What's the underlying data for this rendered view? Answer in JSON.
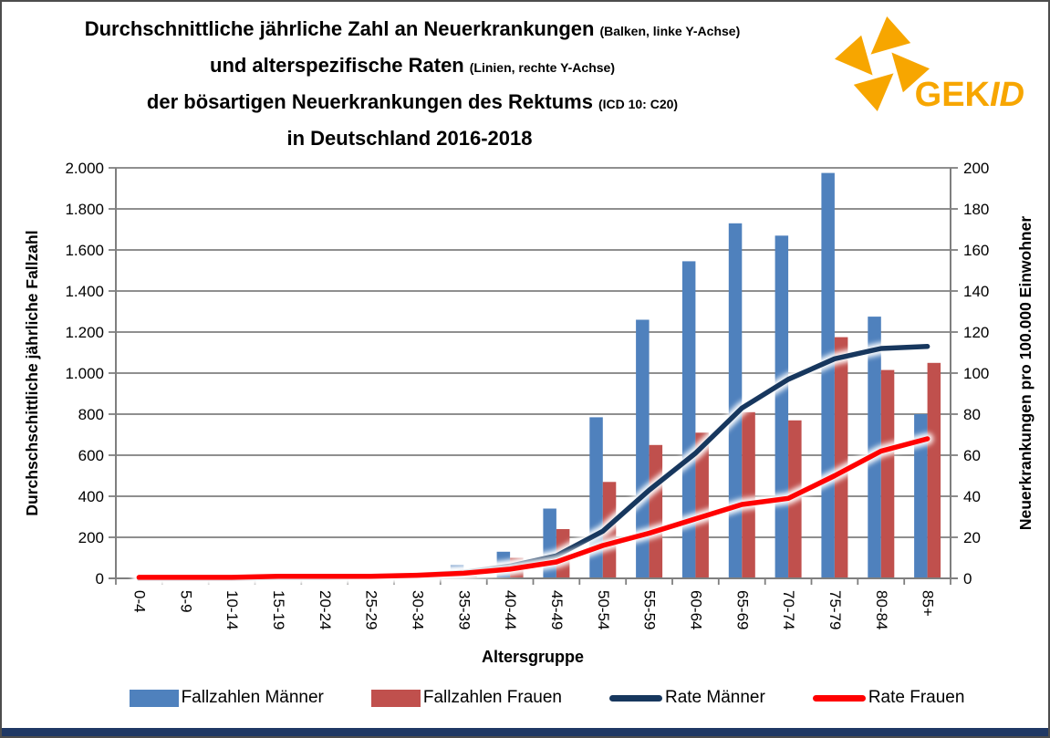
{
  "header": {
    "title_lines": [
      {
        "main": "Durchschnittliche jährliche Zahl an Neuerkrankungen",
        "note": "(Balken, linke Y-Achse)"
      },
      {
        "main": "und alterspezifische Raten",
        "note": "(Linien, rechte Y-Achse)"
      },
      {
        "main": "der bösartigen Neuerkrankungen des Rektums",
        "note": "(ICD 10: C20)"
      },
      {
        "main": "in Deutschland 2016-2018",
        "note": ""
      }
    ],
    "logo": {
      "text_bold": "GEK",
      "text_italic": "ID",
      "color": "#F7A600"
    }
  },
  "chart_data": {
    "type": "bar",
    "subtype": "grouped bars with two overlay lines",
    "categories": [
      "0-4",
      "5-9",
      "10-14",
      "15-19",
      "20-24",
      "25-29",
      "30-34",
      "35-39",
      "40-44",
      "45-49",
      "50-54",
      "55-59",
      "60-64",
      "65-69",
      "70-74",
      "75-79",
      "80-84",
      "85+"
    ],
    "series": [
      {
        "name": "Fallzahlen Männer",
        "type": "bar",
        "axis": "left",
        "color": "#4F81BD",
        "values": [
          1,
          1,
          1,
          2,
          3,
          6,
          25,
          65,
          130,
          340,
          785,
          1260,
          1545,
          1730,
          1670,
          1975,
          1275,
          800
        ]
      },
      {
        "name": "Fallzahlen Frauen",
        "type": "bar",
        "axis": "left",
        "color": "#C0504D",
        "values": [
          1,
          1,
          1,
          2,
          3,
          5,
          15,
          35,
          100,
          240,
          470,
          650,
          710,
          810,
          770,
          1175,
          1015,
          1050
        ]
      },
      {
        "name": "Rate Männer",
        "type": "line",
        "axis": "right",
        "color": "#17375E",
        "values": [
          0,
          0,
          0,
          0.5,
          0.5,
          1,
          1.5,
          3,
          6,
          11,
          23,
          43,
          61,
          83,
          97,
          107,
          112,
          113
        ]
      },
      {
        "name": "Rate Frauen",
        "type": "line",
        "axis": "right",
        "color": "#FF0000",
        "values": [
          0.5,
          0.5,
          0.5,
          1,
          1,
          1,
          1.5,
          2.5,
          4.5,
          8,
          16,
          22,
          29,
          36,
          39,
          50,
          62,
          68
        ]
      }
    ],
    "xlabel": "Altersgruppe",
    "ylabel_left": "Durchschschittliche jährliche Fallzahl",
    "ylabel_right": "Neuerkrankungen pro 100.000 Einwohner",
    "ylim_left": [
      0,
      2000
    ],
    "ylim_right": [
      0,
      200
    ],
    "y_left_ticks": [
      "0",
      "200",
      "400",
      "600",
      "800",
      "1.000",
      "1.200",
      "1.400",
      "1.600",
      "1.800",
      "2.000"
    ],
    "y_right_ticks": [
      "0",
      "20",
      "40",
      "60",
      "80",
      "100",
      "120",
      "140",
      "160",
      "180",
      "200"
    ],
    "grid": true,
    "legend_position": "bottom",
    "gridline_color": "#7F7F7F"
  },
  "footer": {
    "bar_color": "#1F3864"
  }
}
